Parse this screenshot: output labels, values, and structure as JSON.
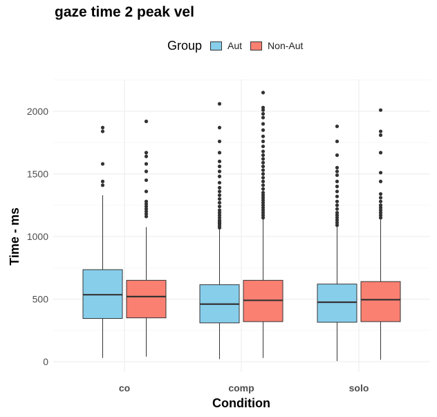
{
  "chart_data": {
    "type": "boxplot",
    "title": "gaze time 2 peak vel",
    "xlabel": "Condition",
    "ylabel": "Time - ms",
    "ylim": [
      -80,
      2310
    ],
    "yticks": [
      0,
      500,
      1000,
      1500,
      2000
    ],
    "categories": [
      "co",
      "comp",
      "solo"
    ],
    "legend": {
      "title": "Group",
      "position": "top"
    },
    "grid": true,
    "series": [
      {
        "name": "Aut",
        "color": "#87CEEB",
        "boxes": [
          {
            "min": 30,
            "q1": 345,
            "median": 535,
            "q3": 735,
            "max": 1330,
            "outliers": [
              1580,
              1410,
              1440,
              1840,
              1870
            ]
          },
          {
            "min": 20,
            "q1": 310,
            "median": 460,
            "q3": 615,
            "max": 1060,
            "outliers": [
              1070,
              1085,
              1100,
              1110,
              1120,
              1130,
              1150,
              1170,
              1190,
              1210,
              1240,
              1270,
              1300,
              1330,
              1360,
              1390,
              1430,
              1480,
              1520,
              1560,
              1600,
              1670,
              1760,
              1870,
              2060
            ]
          },
          {
            "min": 5,
            "q1": 315,
            "median": 475,
            "q3": 620,
            "max": 1080,
            "outliers": [
              1090,
              1110,
              1130,
              1150,
              1170,
              1190,
              1220,
              1250,
              1280,
              1320,
              1360,
              1400,
              1440,
              1490,
              1520,
              1550,
              1650,
              1760,
              1880
            ]
          }
        ]
      },
      {
        "name": "Non-Aut",
        "color": "#FA8072",
        "boxes": [
          {
            "min": 40,
            "q1": 350,
            "median": 520,
            "q3": 650,
            "max": 1075,
            "outliers": [
              1160,
              1180,
              1200,
              1220,
              1240,
              1260,
              1280,
              1360,
              1450,
              1520,
              1580,
              1640,
              1670,
              1920
            ]
          },
          {
            "min": 30,
            "q1": 320,
            "median": 490,
            "q3": 650,
            "max": 1140,
            "outliers": [
              1150,
              1170,
              1190,
              1210,
              1230,
              1250,
              1270,
              1290,
              1310,
              1330,
              1350,
              1380,
              1410,
              1440,
              1470,
              1500,
              1530,
              1560,
              1590,
              1620,
              1650,
              1680,
              1720,
              1760,
              1800,
              1850,
              1900,
              1950,
              1980,
              2010,
              2030,
              2150
            ]
          },
          {
            "min": 15,
            "q1": 320,
            "median": 495,
            "q3": 640,
            "max": 1135,
            "outliers": [
              1150,
              1170,
              1190,
              1210,
              1230,
              1250,
              1280,
              1310,
              1340,
              1440,
              1510,
              1670,
              1810,
              1840,
              2010
            ]
          }
        ]
      }
    ]
  }
}
